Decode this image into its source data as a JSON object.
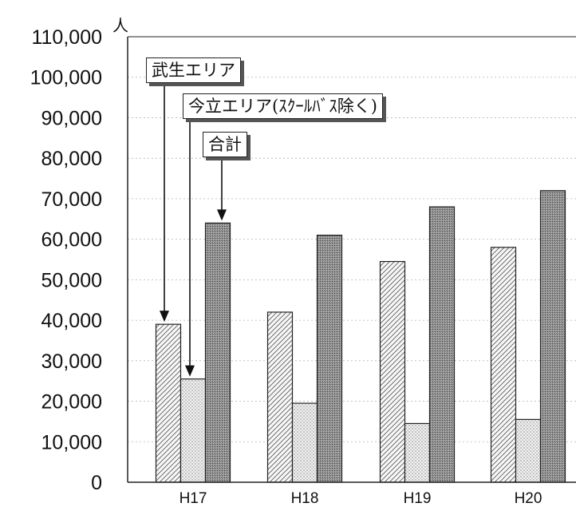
{
  "chart_data": {
    "type": "bar",
    "unit": "人",
    "categories": [
      "H17",
      "H18",
      "H19",
      "H20"
    ],
    "series": [
      {
        "name": "武生エリア",
        "values": [
          39000,
          42000,
          54500,
          58000
        ],
        "pattern": "diagonal-hatch"
      },
      {
        "name": "今立エリア(ｽｸｰﾙﾊﾞｽ除く)",
        "values": [
          25500,
          19500,
          14500,
          15500
        ],
        "pattern": "dots"
      },
      {
        "name": "合計",
        "values": [
          64000,
          61000,
          68000,
          72000
        ],
        "pattern": "dark-dither"
      }
    ],
    "ylim": [
      0,
      110000
    ],
    "yticks": [
      "0",
      "10,000",
      "20,000",
      "30,000",
      "40,000",
      "50,000",
      "60,000",
      "70,000",
      "80,000",
      "90,000",
      "100,000",
      "110,000"
    ],
    "grid": true,
    "legend_position": "top-left"
  }
}
